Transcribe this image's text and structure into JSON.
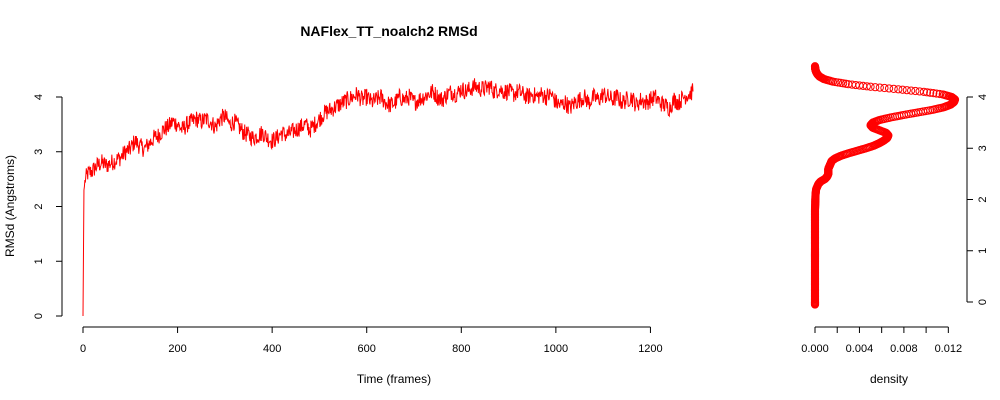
{
  "chart_data": [
    {
      "type": "line",
      "title": "NAFlex_TT_noalch2 RMSd",
      "xlabel": "Time (frames)",
      "ylabel": "RMSd (Angstroms)",
      "xlim": [
        0,
        1290
      ],
      "ylim": [
        0,
        4.5
      ],
      "xticks": [
        0,
        200,
        400,
        600,
        800,
        1000,
        1200
      ],
      "yticks": [
        0,
        1,
        2,
        3,
        4
      ],
      "xtick_labels": [
        "0",
        "200",
        "400",
        "600",
        "800",
        "1000",
        "1200"
      ],
      "ytick_labels": [
        "0",
        "1",
        "2",
        "3",
        "4"
      ],
      "line_color": "#ff0000",
      "grid": false,
      "series": [
        {
          "x": [
            0,
            2,
            5,
            10,
            20,
            30,
            40,
            50,
            60,
            70,
            80,
            90,
            100,
            110,
            120,
            130,
            140,
            150,
            160,
            170,
            180,
            190,
            200,
            210,
            220,
            230,
            240,
            250,
            260,
            270,
            280,
            290,
            300,
            310,
            320,
            330,
            340,
            350,
            360,
            370,
            380,
            390,
            400,
            410,
            420,
            430,
            440,
            450,
            460,
            470,
            480,
            490,
            500,
            510,
            520,
            530,
            540,
            550,
            560,
            570,
            580,
            590,
            600,
            610,
            620,
            630,
            640,
            650,
            660,
            670,
            680,
            690,
            700,
            710,
            720,
            730,
            740,
            750,
            760,
            770,
            780,
            790,
            800,
            810,
            820,
            830,
            840,
            850,
            860,
            870,
            880,
            890,
            900,
            910,
            920,
            930,
            940,
            950,
            960,
            970,
            980,
            990,
            1000,
            1010,
            1020,
            1030,
            1040,
            1050,
            1060,
            1070,
            1080,
            1090,
            1100,
            1110,
            1120,
            1130,
            1140,
            1150,
            1160,
            1170,
            1180,
            1190,
            1200,
            1210,
            1220,
            1230,
            1240,
            1250,
            1260,
            1270,
            1280,
            1290
          ],
          "y": [
            0.0,
            2.3,
            2.5,
            2.6,
            2.65,
            2.75,
            2.8,
            2.75,
            2.8,
            2.85,
            2.9,
            3.0,
            3.05,
            3.2,
            3.1,
            3.05,
            3.15,
            3.25,
            3.3,
            3.4,
            3.45,
            3.55,
            3.5,
            3.4,
            3.5,
            3.55,
            3.6,
            3.55,
            3.6,
            3.55,
            3.45,
            3.6,
            3.65,
            3.5,
            3.55,
            3.45,
            3.35,
            3.3,
            3.25,
            3.3,
            3.35,
            3.25,
            3.2,
            3.25,
            3.35,
            3.3,
            3.35,
            3.4,
            3.45,
            3.5,
            3.4,
            3.5,
            3.6,
            3.7,
            3.75,
            3.8,
            3.85,
            3.9,
            3.95,
            4.0,
            4.05,
            3.95,
            4.0,
            3.9,
            3.95,
            4.0,
            3.9,
            3.85,
            3.9,
            4.0,
            3.95,
            4.0,
            3.9,
            3.95,
            4.0,
            4.05,
            4.1,
            4.0,
            3.95,
            4.05,
            4.1,
            4.05,
            4.15,
            4.1,
            4.15,
            4.2,
            4.15,
            4.15,
            4.2,
            4.1,
            4.15,
            4.1,
            4.1,
            4.05,
            4.1,
            4.05,
            4.0,
            4.05,
            4.0,
            4.05,
            4.0,
            4.05,
            3.9,
            3.85,
            3.9,
            3.8,
            3.9,
            3.95,
            4.0,
            3.9,
            4.0,
            3.95,
            4.05,
            4.0,
            3.95,
            4.0,
            3.9,
            3.95,
            4.0,
            3.85,
            3.95,
            3.9,
            3.95,
            4.0,
            3.9,
            3.85,
            3.8,
            3.95,
            3.9,
            4.0,
            4.05,
            4.1
          ]
        }
      ]
    },
    {
      "type": "scatter",
      "xlabel": "density",
      "ylabel": "",
      "xlim": [
        0,
        0.0126
      ],
      "ylim": [
        0,
        4.5
      ],
      "xticks": [
        0.0,
        0.002,
        0.004,
        0.006,
        0.008,
        0.01,
        0.012
      ],
      "xtick_labels": [
        "0.000",
        "0.004",
        "0.008",
        "0.012"
      ],
      "xtick_label_values": [
        0.0,
        0.004,
        0.008,
        0.012
      ],
      "yticks": [
        0,
        1,
        2,
        3,
        4
      ],
      "ytick_labels": [
        "0",
        "1",
        "2",
        "3",
        "4"
      ],
      "y_axis_side": "right",
      "marker": "open-circle",
      "marker_color": "#ff0000",
      "grid": false,
      "points": {
        "y": [
          -0.05,
          0.0,
          0.1,
          0.2,
          0.3,
          0.4,
          0.5,
          0.6,
          0.7,
          0.8,
          0.9,
          1.0,
          1.1,
          1.2,
          1.3,
          1.4,
          1.5,
          1.6,
          1.7,
          1.8,
          1.9,
          2.0,
          2.1,
          2.2,
          2.3,
          2.35,
          2.4,
          2.45,
          2.5,
          2.55,
          2.6,
          2.65,
          2.7,
          2.75,
          2.8,
          2.85,
          2.9,
          2.95,
          3.0,
          3.05,
          3.1,
          3.15,
          3.2,
          3.25,
          3.3,
          3.35,
          3.4,
          3.45,
          3.5,
          3.55,
          3.6,
          3.65,
          3.7,
          3.75,
          3.8,
          3.85,
          3.9,
          3.95,
          4.0,
          4.05,
          4.1,
          4.15,
          4.2,
          4.25,
          4.3,
          4.35,
          4.4,
          4.45,
          4.5,
          4.55,
          4.6
        ],
        "density": [
          0.0,
          0.0,
          0.0,
          0.0,
          0.0,
          0.0,
          0.0,
          0.0,
          0.0,
          0.0,
          0.0,
          0.0,
          0.0,
          0.0,
          0.0,
          0.0,
          0.0,
          0.0,
          0.0,
          0.0,
          2e-05,
          3e-05,
          5e-05,
          0.0001,
          0.0003,
          0.0005,
          0.0009,
          0.0011,
          0.0012,
          0.0012,
          0.0012,
          0.0013,
          0.0014,
          0.0015,
          0.0018,
          0.0023,
          0.003,
          0.0038,
          0.0046,
          0.0053,
          0.0058,
          0.0062,
          0.0065,
          0.0066,
          0.0064,
          0.0058,
          0.0052,
          0.005,
          0.0052,
          0.0058,
          0.0068,
          0.008,
          0.0093,
          0.0106,
          0.0116,
          0.0122,
          0.0125,
          0.0126,
          0.0123,
          0.0115,
          0.0098,
          0.0075,
          0.005,
          0.003,
          0.0016,
          0.0008,
          0.0004,
          0.0002,
          8e-05,
          2e-05,
          0.0
        ]
      }
    }
  ]
}
